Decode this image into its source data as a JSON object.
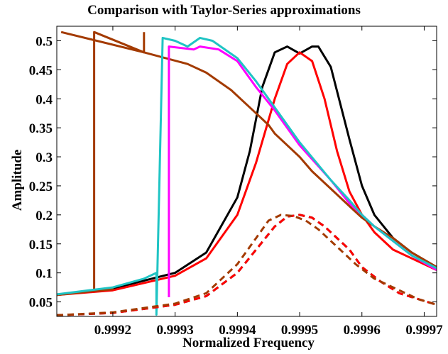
{
  "chart_data": {
    "type": "line",
    "title": "Comparison with Taylor-Series approximations",
    "xlabel": "Normalized Frequency",
    "ylabel": "Amplitude",
    "xlim": [
      0.99911,
      0.99972
    ],
    "ylim": [
      0.025,
      0.525
    ],
    "xticks": [
      0.9992,
      0.9993,
      0.9994,
      0.9995,
      0.9996,
      0.9997
    ],
    "xtick_labels": [
      "0.9992",
      "0.9993",
      "0.9994",
      "0.9995",
      "0.9996",
      "0.9997"
    ],
    "yticks": [
      0.05,
      0.1,
      0.15,
      0.2,
      0.25,
      0.3,
      0.35,
      0.4,
      0.45,
      0.5
    ],
    "ytick_labels": [
      "0.05",
      "0.1",
      "0.15",
      "0.2",
      "0.25",
      "0.3",
      "0.35",
      "0.4",
      "0.45",
      "0.5"
    ],
    "grid": false,
    "legend": "none",
    "series": [
      {
        "color": "#000000",
        "style": "solid",
        "x": [
          0.99911,
          0.9992,
          0.9993,
          0.99935,
          0.9994,
          0.99942,
          0.99944,
          0.99946,
          0.99948,
          0.9995,
          0.99952,
          0.99953,
          0.99955,
          0.99958,
          0.9996,
          0.99962,
          0.99965,
          0.99968,
          0.99972
        ],
        "y": [
          0.062,
          0.073,
          0.1,
          0.135,
          0.23,
          0.31,
          0.42,
          0.48,
          0.49,
          0.478,
          0.49,
          0.49,
          0.455,
          0.33,
          0.25,
          0.2,
          0.16,
          0.135,
          0.11
        ]
      },
      {
        "color": "#ff0000",
        "style": "solid",
        "x": [
          0.99911,
          0.9992,
          0.9993,
          0.99935,
          0.9994,
          0.99943,
          0.99946,
          0.99948,
          0.9995,
          0.99952,
          0.99954,
          0.99956,
          0.99958,
          0.9996,
          0.99962,
          0.99965,
          0.99968,
          0.99972
        ],
        "y": [
          0.062,
          0.07,
          0.095,
          0.125,
          0.2,
          0.29,
          0.4,
          0.46,
          0.48,
          0.465,
          0.4,
          0.31,
          0.24,
          0.2,
          0.17,
          0.14,
          0.125,
          0.105
        ]
      },
      {
        "color": "#a33a00",
        "style": "solid",
        "x": [
          0.999117,
          0.99925,
          0.99932,
          0.99935,
          0.99939,
          0.99941,
          0.99943,
          0.99945,
          0.99946,
          0.99948,
          0.9995,
          0.99952,
          0.99955,
          0.99958,
          0.9996,
          0.99962,
          0.99965,
          0.99968,
          0.99972
        ],
        "y": [
          0.515,
          0.48,
          0.46,
          0.445,
          0.415,
          0.395,
          0.375,
          0.355,
          0.34,
          0.32,
          0.3,
          0.275,
          0.245,
          0.215,
          0.195,
          0.18,
          0.16,
          0.135,
          0.11
        ],
        "leading_segment": {
          "x": [
            0.99911,
            0.9992,
            0.99917,
            0.99917,
            0.99925,
            0.99925,
            0.99925
          ],
          "y": [
            0.062,
            0.072,
            0.07,
            0.515,
            0.48,
            0.515,
            0.515
          ]
        }
      },
      {
        "color": "#ff00ff",
        "style": "solid",
        "x": [
          0.99929,
          0.99929,
          0.99933,
          0.99934,
          0.99937,
          0.9994,
          0.99943,
          0.99946,
          0.9995,
          0.99955,
          0.99958,
          0.9996,
          0.99962,
          0.99965,
          0.99968,
          0.99972
        ],
        "y": [
          0.058,
          0.49,
          0.485,
          0.49,
          0.485,
          0.465,
          0.42,
          0.38,
          0.32,
          0.26,
          0.22,
          0.2,
          0.18,
          0.155,
          0.13,
          0.105
        ]
      },
      {
        "color": "#1fc4c4",
        "style": "solid",
        "x": [
          0.99911,
          0.9992,
          0.99925,
          0.99927,
          0.99927,
          0.99928,
          0.9993,
          0.99932,
          0.99934,
          0.99936,
          0.9994,
          0.99943,
          0.99946,
          0.9995,
          0.99955,
          0.99958,
          0.9996,
          0.99962,
          0.99965,
          0.99968,
          0.99972
        ],
        "y": [
          0.063,
          0.075,
          0.09,
          0.1,
          0.028,
          0.505,
          0.5,
          0.49,
          0.505,
          0.5,
          0.47,
          0.43,
          0.385,
          0.325,
          0.26,
          0.225,
          0.2,
          0.18,
          0.155,
          0.13,
          0.108
        ]
      },
      {
        "color": "#000000",
        "style": "dashed",
        "x": [
          0.99911,
          0.9992,
          0.9993,
          0.99935,
          0.9994,
          0.99943,
          0.99946,
          0.99948,
          0.9995,
          0.99952,
          0.99954,
          0.99956,
          0.99958,
          0.9996,
          0.99963,
          0.99966,
          0.99969,
          0.99972
        ],
        "y": [
          0.027,
          0.031,
          0.045,
          0.06,
          0.1,
          0.14,
          0.18,
          0.197,
          0.2,
          0.195,
          0.18,
          0.16,
          0.14,
          0.11,
          0.085,
          0.065,
          0.055,
          0.045
        ]
      },
      {
        "color": "#ff0000",
        "style": "dashed",
        "x": [
          0.99911,
          0.9992,
          0.9993,
          0.99935,
          0.9994,
          0.99943,
          0.99946,
          0.99948,
          0.9995,
          0.99952,
          0.99954,
          0.99956,
          0.99958,
          0.9996,
          0.99963,
          0.99966,
          0.99969,
          0.99972
        ],
        "y": [
          0.027,
          0.031,
          0.045,
          0.06,
          0.1,
          0.14,
          0.18,
          0.197,
          0.2,
          0.195,
          0.18,
          0.16,
          0.14,
          0.11,
          0.085,
          0.065,
          0.055,
          0.045
        ]
      },
      {
        "color": "#a33a00",
        "style": "dashed",
        "x": [
          0.99911,
          0.9992,
          0.9993,
          0.99935,
          0.9994,
          0.99943,
          0.99945,
          0.99947,
          0.99949,
          0.99951,
          0.99953,
          0.99956,
          0.99959,
          0.99962,
          0.99966,
          0.99969,
          0.99972
        ],
        "y": [
          0.027,
          0.032,
          0.047,
          0.065,
          0.115,
          0.16,
          0.19,
          0.2,
          0.198,
          0.19,
          0.175,
          0.145,
          0.115,
          0.09,
          0.07,
          0.055,
          0.045
        ]
      }
    ]
  }
}
